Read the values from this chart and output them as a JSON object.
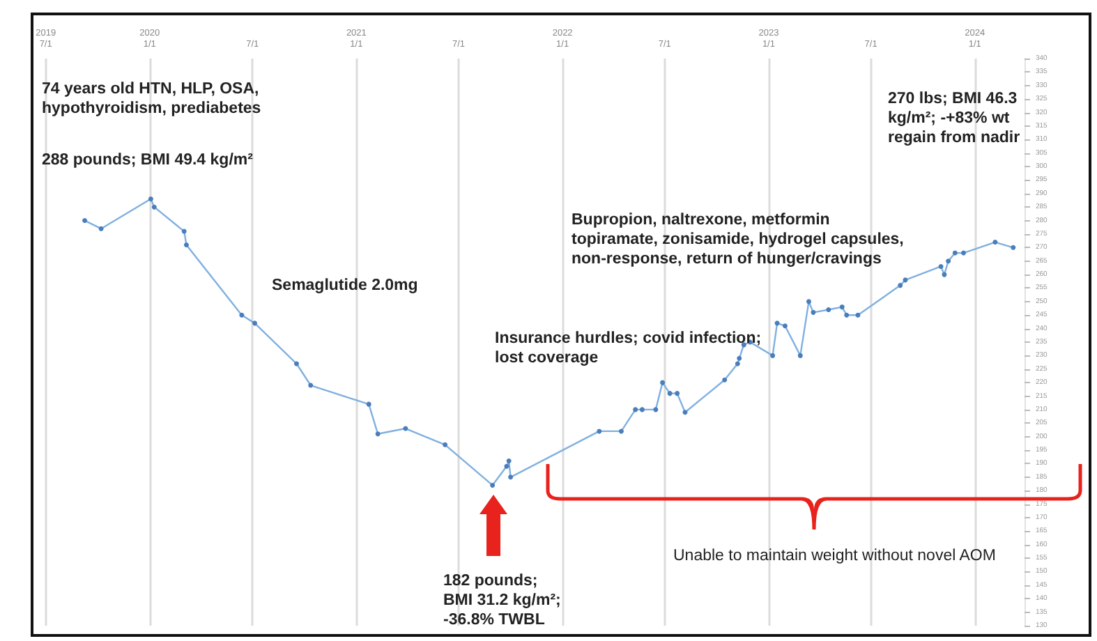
{
  "chart_data": {
    "type": "line",
    "color": "#7fb0e0",
    "marker": "circle",
    "line_style": "solid",
    "grid": "x",
    "xlim": [
      "2019-06-24",
      "2024-03-29"
    ],
    "xticks": [
      {
        "value": "2019-07-01",
        "label": "2019\n7/1"
      },
      {
        "value": "2020-01-01",
        "label": "2020\n1/1"
      },
      {
        "value": "2020-07-01",
        "label": "7/1"
      },
      {
        "value": "2021-01-01",
        "label": "2021\n1/1"
      },
      {
        "value": "2021-07-01",
        "label": "7/1"
      },
      {
        "value": "2022-01-01",
        "label": "2022\n1/1"
      },
      {
        "value": "2022-07-01",
        "label": "7/1"
      },
      {
        "value": "2023-01-01",
        "label": "2023\n1/1"
      },
      {
        "value": "2023-07-01",
        "label": "7/1"
      },
      {
        "value": "2024-01-01",
        "label": "2024\n1/1"
      }
    ],
    "ylim": [
      130,
      340
    ],
    "yticks": [
      130,
      135,
      140,
      145,
      150,
      155,
      160,
      165,
      170,
      175,
      180,
      185,
      190,
      195,
      200,
      205,
      210,
      215,
      220,
      225,
      230,
      235,
      240,
      245,
      250,
      255,
      260,
      265,
      270,
      275,
      280,
      285,
      290,
      295,
      300,
      305,
      310,
      315,
      320,
      325,
      330,
      335,
      340
    ],
    "x": [
      "2019-09-08",
      "2019-10-07",
      "2020-01-03",
      "2020-01-09",
      "2020-03-02",
      "2020-03-06",
      "2020-06-12",
      "2020-07-05",
      "2020-09-17",
      "2020-10-12",
      "2021-01-23",
      "2021-02-08",
      "2021-03-29",
      "2021-06-07",
      "2021-08-30",
      "2021-09-24",
      "2021-09-28",
      "2021-10-01",
      "2022-03-07",
      "2022-04-15",
      "2022-05-10",
      "2022-05-22",
      "2022-06-15",
      "2022-06-27",
      "2022-07-10",
      "2022-07-23",
      "2022-08-06",
      "2022-10-15",
      "2022-11-07",
      "2022-11-10",
      "2022-11-18",
      "2022-11-29",
      "2023-01-08",
      "2023-01-16",
      "2023-01-30",
      "2023-02-26",
      "2023-03-13",
      "2023-03-21",
      "2023-04-17",
      "2023-05-11",
      "2023-05-19",
      "2023-06-08",
      "2023-08-22",
      "2023-08-31",
      "2023-11-02",
      "2023-11-08",
      "2023-11-15",
      "2023-11-27",
      "2023-12-12",
      "2024-02-06",
      "2024-03-09"
    ],
    "values": [
      280,
      277,
      288,
      285,
      276,
      271,
      245,
      242,
      227,
      219,
      212,
      201,
      203,
      197,
      182,
      189,
      191,
      185,
      202,
      202,
      210,
      210,
      210,
      220,
      216,
      216,
      209,
      221,
      227,
      229,
      234,
      235,
      230,
      242,
      241,
      230,
      250,
      246,
      247,
      248,
      245,
      245,
      256,
      258,
      263,
      260,
      265,
      268,
      268,
      272,
      270
    ],
    "annotations": [
      "74 years old HTN, HLP, OSA, hypothyroidism, prediabetes",
      "288 pounds;  BMI 49.4 kg/m²",
      "Semaglutide 2.0mg",
      "Insurance hurdles; covid infection;  lost coverage",
      "Bupropion, naltrexone, metformin topiramate, zonisamide, hydrogel capsules, non-response, return of hunger/cravings",
      "270 lbs;  BMI 46.3 kg/m²;  -+83% wt regain from nadir",
      "182 pounds;\nBMI 31.2 kg/m²;\n-36.8% TWBL",
      "Unable to maintain weight without novel AOM"
    ]
  }
}
